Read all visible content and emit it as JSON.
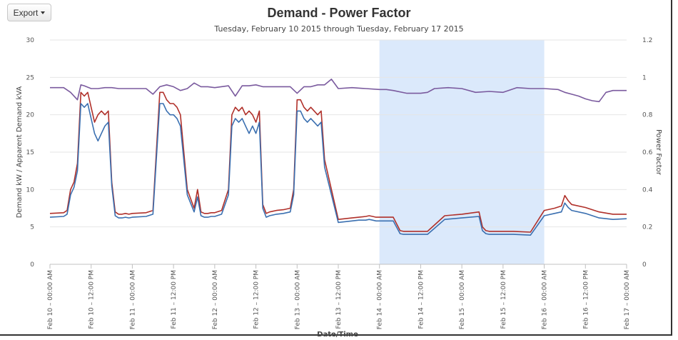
{
  "export_button": {
    "label": "Export"
  },
  "chart_data": {
    "type": "line",
    "title": "Demand - Power Factor",
    "subtitle": "Tuesday, February 10 2015 through Tuesday, February 17 2015",
    "xlabel": "Date/Time",
    "ylabel": "Demand kW / Apparent Demand kVA",
    "ylabel_right": "Power Factor",
    "ylim": [
      0,
      30
    ],
    "ylim_right": [
      0,
      1.2
    ],
    "yticks": [
      "0",
      "5",
      "10",
      "15",
      "20",
      "25",
      "30"
    ],
    "yticks_right": [
      "0",
      "0.2",
      "0.4",
      "0.6",
      "0.8",
      "1",
      "1.2"
    ],
    "x_tick_labels": [
      "Feb 10 – 00:00 AM",
      "Feb 10 – 12:00 PM",
      "Feb 11 – 00:00 AM",
      "Feb 11 – 12:00 PM",
      "Feb 12 – 00:00 AM",
      "Feb 12 – 12:00 PM",
      "Feb 13 – 00:00 AM",
      "Feb 13 – 12:00 PM",
      "Feb 14 – 00:00 AM",
      "Feb 14 – 12:00 PM",
      "Feb 15 – 00:00 AM",
      "Feb 15 – 12:00 PM",
      "Feb 16 – 00:00 AM",
      "Feb 16 – 12:00 PM",
      "Feb 17 – 00:00 AM"
    ],
    "x_range_hours": [
      0,
      168
    ],
    "highlight_band_hours": [
      96,
      144
    ],
    "grid": true,
    "legend": "none",
    "colors": {
      "kw": "#3a6fb0",
      "kva": "#b0302a",
      "pf": "#7a5a9e",
      "band": "#dbe9fb",
      "grid": "#e6e6e6"
    },
    "series": [
      {
        "key": "kva",
        "x": [
          0,
          4,
          5,
          6,
          7,
          8,
          9,
          10,
          11,
          12,
          13,
          14,
          15,
          16,
          17,
          18,
          19,
          20,
          21,
          22,
          23,
          24,
          28,
          30,
          32,
          33,
          34,
          35,
          36,
          37,
          38,
          40,
          42,
          43,
          44,
          45,
          46,
          47,
          48,
          50,
          52,
          53,
          54,
          55,
          56,
          57,
          58,
          59,
          60,
          61,
          62,
          63,
          64,
          66,
          68,
          70,
          71,
          72,
          73,
          74,
          75,
          76,
          77,
          78,
          79,
          80,
          84,
          88,
          90,
          92,
          93,
          94,
          95,
          96,
          100,
          102,
          103,
          104,
          110,
          115,
          120,
          125,
          126,
          127,
          128,
          135,
          140,
          144,
          147,
          149,
          150,
          151,
          152,
          156,
          160,
          164,
          168
        ],
        "y": [
          6.8,
          6.9,
          7.2,
          10,
          11,
          13.5,
          23,
          22.5,
          23,
          21,
          19,
          20,
          20.5,
          20,
          20.5,
          11,
          7,
          6.7,
          6.7,
          6.8,
          6.7,
          6.8,
          6.9,
          7.2,
          23,
          23,
          22,
          21.5,
          21.5,
          21,
          20,
          10,
          7.5,
          10,
          7,
          6.8,
          6.8,
          6.9,
          6.9,
          7.2,
          10,
          20,
          21,
          20.5,
          21,
          20,
          20.5,
          20,
          19,
          20.5,
          8,
          6.8,
          7,
          7.2,
          7.3,
          7.5,
          10,
          22,
          22,
          21,
          20.5,
          21,
          20.5,
          20,
          20.5,
          14,
          6,
          6.2,
          6.3,
          6.4,
          6.5,
          6.4,
          6.3,
          6.3,
          6.3,
          4.5,
          4.4,
          4.4,
          4.4,
          6.5,
          6.7,
          7,
          5,
          4.5,
          4.4,
          4.4,
          4.3,
          7.2,
          7.5,
          7.8,
          9.2,
          8.5,
          8,
          7.6,
          7.0,
          6.7,
          6.7
        ]
      },
      {
        "key": "kw",
        "x": [
          0,
          4,
          5,
          6,
          7,
          8,
          9,
          10,
          11,
          12,
          13,
          14,
          15,
          16,
          17,
          18,
          19,
          20,
          21,
          22,
          23,
          24,
          28,
          30,
          32,
          33,
          34,
          35,
          36,
          37,
          38,
          40,
          42,
          43,
          44,
          45,
          46,
          47,
          48,
          50,
          52,
          53,
          54,
          55,
          56,
          57,
          58,
          59,
          60,
          61,
          62,
          63,
          64,
          66,
          68,
          70,
          71,
          72,
          73,
          74,
          75,
          76,
          77,
          78,
          79,
          80,
          84,
          88,
          90,
          92,
          93,
          94,
          95,
          96,
          100,
          102,
          103,
          104,
          110,
          115,
          120,
          125,
          126,
          127,
          128,
          135,
          140,
          144,
          147,
          149,
          150,
          151,
          152,
          156,
          160,
          164,
          168
        ],
        "y": [
          6.3,
          6.4,
          6.7,
          9.3,
          10.3,
          12.5,
          21.5,
          21,
          21.5,
          19.5,
          17.5,
          16.5,
          17.5,
          18.5,
          19,
          10.5,
          6.5,
          6.2,
          6.2,
          6.3,
          6.2,
          6.3,
          6.4,
          6.7,
          21.5,
          21.5,
          20.5,
          20,
          20,
          19.5,
          18.5,
          9.3,
          7,
          9,
          6.5,
          6.3,
          6.3,
          6.4,
          6.4,
          6.7,
          9.3,
          18.5,
          19.5,
          19,
          19.5,
          18.5,
          17.5,
          18.5,
          17.5,
          19,
          7.5,
          6.3,
          6.5,
          6.7,
          6.8,
          7,
          9.3,
          20.5,
          20.5,
          19.5,
          19,
          19.5,
          19,
          18.5,
          19,
          13,
          5.6,
          5.8,
          5.9,
          5.9,
          6,
          5.9,
          5.8,
          5.8,
          5.8,
          4.1,
          4,
          4,
          4,
          6,
          6.2,
          6.4,
          4.5,
          4.1,
          4,
          4,
          3.9,
          6.5,
          6.8,
          7,
          8.2,
          7.6,
          7.2,
          6.8,
          6.2,
          6,
          6.1
        ]
      },
      {
        "key": "pf",
        "x": [
          0,
          4,
          6,
          8,
          9,
          10,
          12,
          14,
          16,
          18,
          20,
          24,
          28,
          30,
          32,
          34,
          36,
          38,
          40,
          42,
          44,
          46,
          48,
          52,
          54,
          56,
          58,
          60,
          62,
          66,
          70,
          72,
          74,
          76,
          78,
          80,
          82,
          84,
          88,
          92,
          96,
          98,
          100,
          104,
          108,
          110,
          112,
          116,
          120,
          124,
          128,
          132,
          136,
          140,
          144,
          148,
          150,
          152,
          154,
          156,
          158,
          160,
          162,
          164,
          168
        ],
        "y": [
          0.945,
          0.945,
          0.92,
          0.88,
          0.96,
          0.955,
          0.94,
          0.94,
          0.945,
          0.945,
          0.94,
          0.94,
          0.94,
          0.91,
          0.95,
          0.96,
          0.95,
          0.93,
          0.94,
          0.97,
          0.95,
          0.95,
          0.945,
          0.955,
          0.9,
          0.955,
          0.955,
          0.96,
          0.95,
          0.95,
          0.95,
          0.915,
          0.95,
          0.95,
          0.96,
          0.96,
          0.99,
          0.94,
          0.945,
          0.94,
          0.935,
          0.935,
          0.93,
          0.915,
          0.915,
          0.92,
          0.94,
          0.945,
          0.94,
          0.92,
          0.925,
          0.92,
          0.945,
          0.94,
          0.94,
          0.935,
          0.92,
          0.91,
          0.9,
          0.885,
          0.875,
          0.87,
          0.92,
          0.93,
          0.93
        ]
      }
    ]
  }
}
